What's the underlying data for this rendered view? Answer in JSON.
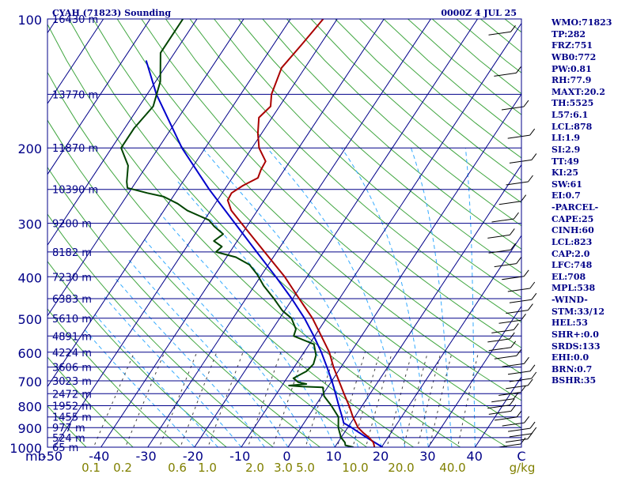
{
  "header": {
    "station": "CYAH (71823) Sounding",
    "datetime": "0000Z  4 JUL 25"
  },
  "stats": [
    "WMO:71823",
    "TP:282",
    "FRZ:751",
    "WB0:772",
    "PW:0.81",
    "RH:77.9",
    "MAXT:20.2",
    "TH:5525",
    "L57:6.1",
    "LCL:878",
    "LI:1.9",
    "SI:2.9",
    "TT:49",
    "KI:25",
    "SW:61",
    "EI:0.7",
    "-PARCEL-",
    "CAPE:25",
    "CINH:60",
    "LCL:823",
    "CAP:2.0",
    "LFC:748",
    "EL:708",
    "MPL:538",
    "-WIND-",
    "STM:33/12",
    "HEL:53",
    "SHR+:0.0",
    "SRDS:133",
    "EHI:0.0",
    "BRN:0.7",
    "BSHR:35"
  ],
  "colors": {
    "frame": "#000088",
    "temperature": "#aa0000",
    "dewpoint": "#004400",
    "parcel": "#0000cc",
    "mixing_ratio_labels": "#808000",
    "dry_adiabat": "#008800",
    "moist_adiabat": "#33aaff",
    "mixing_ratio": "#444444"
  },
  "chart_data": {
    "type": "skew-T log-P sounding",
    "y_axis_unit_label": "mb",
    "pressure_levels": [
      100,
      200,
      300,
      400,
      500,
      600,
      700,
      800,
      900,
      1000
    ],
    "pressure_ticks": [
      "100",
      "200",
      "300",
      "400",
      "500",
      "600",
      "700",
      "800",
      "900",
      "1000"
    ],
    "height_labels": [
      {
        "p": 100,
        "label": "16430 m"
      },
      {
        "p": 150,
        "label": "13770 m"
      },
      {
        "p": 200,
        "label": "11870 m"
      },
      {
        "p": 250,
        "label": "10390 m"
      },
      {
        "p": 300,
        "label": "9200 m"
      },
      {
        "p": 350,
        "label": "8182 m"
      },
      {
        "p": 400,
        "label": "7230 m"
      },
      {
        "p": 450,
        "label": "6383 m"
      },
      {
        "p": 500,
        "label": "5610 m"
      },
      {
        "p": 550,
        "label": "4891 m"
      },
      {
        "p": 600,
        "label": "4224 m"
      },
      {
        "p": 650,
        "label": "3606 m"
      },
      {
        "p": 700,
        "label": "3023 m"
      },
      {
        "p": 750,
        "label": "2472 m"
      },
      {
        "p": 800,
        "label": "1952 m"
      },
      {
        "p": 850,
        "label": "1455 m"
      },
      {
        "p": 900,
        "label": "977 m"
      },
      {
        "p": 950,
        "label": "524 m"
      },
      {
        "p": 1000,
        "label": "65 m"
      }
    ],
    "x_ticks": [
      "-50",
      "-40",
      "-30",
      "-20",
      "-10",
      "0",
      "10",
      "20",
      "30",
      "40",
      "C"
    ],
    "mixing_ratio_ticks": [
      "0.1",
      "0.2",
      "0.6",
      "1.0",
      "2.0",
      "3.0",
      "5.0",
      "10.0",
      "20.0",
      "40.0",
      "g/kg"
    ],
    "temperature": [
      [
        1000,
        18.5
      ],
      [
        975,
        17.6
      ],
      [
        950,
        16.0
      ],
      [
        925,
        14.0
      ],
      [
        900,
        12.2
      ],
      [
        850,
        9.6
      ],
      [
        800,
        7.2
      ],
      [
        750,
        4.4
      ],
      [
        700,
        1.5
      ],
      [
        650,
        -1.6
      ],
      [
        600,
        -4.6
      ],
      [
        550,
        -8.6
      ],
      [
        500,
        -13.0
      ],
      [
        450,
        -18.6
      ],
      [
        400,
        -24.8
      ],
      [
        350,
        -32.6
      ],
      [
        300,
        -41.6
      ],
      [
        280,
        -45.6
      ],
      [
        265,
        -47.8
      ],
      [
        255,
        -48.0
      ],
      [
        245,
        -46.6
      ],
      [
        235,
        -44.5
      ],
      [
        225,
        -45.0
      ],
      [
        215,
        -45.2
      ],
      [
        200,
        -48.5
      ],
      [
        185,
        -50.8
      ],
      [
        170,
        -52.8
      ],
      [
        160,
        -51.9
      ],
      [
        150,
        -53.4
      ],
      [
        130,
        -55.0
      ],
      [
        115,
        -54.0
      ],
      [
        100,
        -53.0
      ]
    ],
    "dewpoint": [
      [
        1000,
        14.0
      ],
      [
        990,
        12.0
      ],
      [
        975,
        11.5
      ],
      [
        950,
        10.0
      ],
      [
        925,
        9.0
      ],
      [
        900,
        8.0
      ],
      [
        850,
        6.5
      ],
      [
        800,
        3.4
      ],
      [
        760,
        0.5
      ],
      [
        725,
        -1.0
      ],
      [
        722,
        -5.5
      ],
      [
        718,
        -8.5
      ],
      [
        712,
        -5.0
      ],
      [
        705,
        -7.0
      ],
      [
        690,
        -8.6
      ],
      [
        665,
        -6.8
      ],
      [
        640,
        -6.3
      ],
      [
        610,
        -7.0
      ],
      [
        575,
        -9.0
      ],
      [
        550,
        -14.5
      ],
      [
        530,
        -15.0
      ],
      [
        500,
        -17.5
      ],
      [
        480,
        -20.5
      ],
      [
        450,
        -24.0
      ],
      [
        420,
        -28.0
      ],
      [
        395,
        -31.0
      ],
      [
        375,
        -34.0
      ],
      [
        360,
        -38.0
      ],
      [
        350,
        -43.0
      ],
      [
        340,
        -42.5
      ],
      [
        330,
        -45.0
      ],
      [
        318,
        -44.0
      ],
      [
        305,
        -47.0
      ],
      [
        295,
        -49.0
      ],
      [
        280,
        -55.0
      ],
      [
        270,
        -58.0
      ],
      [
        260,
        -62.0
      ],
      [
        255,
        -66.0
      ],
      [
        248,
        -71.0
      ],
      [
        240,
        -72.0
      ],
      [
        220,
        -74.0
      ],
      [
        200,
        -78.0
      ],
      [
        180,
        -78.0
      ],
      [
        160,
        -77.0
      ],
      [
        140,
        -79.0
      ],
      [
        120,
        -83.0
      ],
      [
        100,
        -83.0
      ]
    ],
    "parcel": [
      [
        1000,
        20.2
      ],
      [
        950,
        15.5
      ],
      [
        900,
        10.8
      ],
      [
        878,
        8.5
      ],
      [
        850,
        7.3
      ],
      [
        800,
        5.0
      ],
      [
        750,
        2.6
      ],
      [
        700,
        0.0
      ],
      [
        650,
        -3.0
      ],
      [
        600,
        -6.3
      ],
      [
        550,
        -10.2
      ],
      [
        500,
        -14.7
      ],
      [
        450,
        -20.2
      ],
      [
        400,
        -26.7
      ],
      [
        350,
        -34.3
      ],
      [
        300,
        -43.0
      ],
      [
        250,
        -53.3
      ],
      [
        200,
        -65.0
      ],
      [
        150,
        -78.0
      ],
      [
        125,
        -85.0
      ]
    ]
  }
}
